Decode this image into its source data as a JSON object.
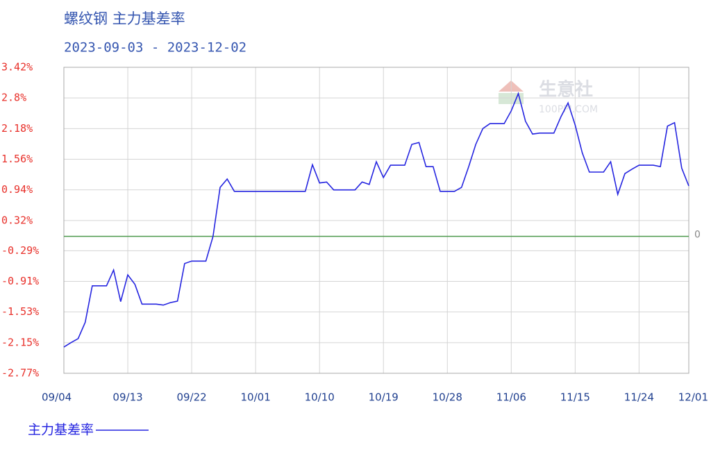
{
  "chart_data": {
    "type": "line",
    "title": "螺纹钢 主力基差率",
    "subtitle": "2023-09-03 - 2023-12-02",
    "watermark": [
      "生意社",
      "100PPI.COM"
    ],
    "x": [
      "09/04",
      "09/05",
      "09/06",
      "09/07",
      "09/08",
      "09/09",
      "09/10",
      "09/11",
      "09/12",
      "09/13",
      "09/14",
      "09/15",
      "09/16",
      "09/17",
      "09/18",
      "09/19",
      "09/20",
      "09/21",
      "09/22",
      "09/23",
      "09/24",
      "09/25",
      "09/26",
      "09/27",
      "09/28",
      "09/29",
      "09/30",
      "10/01",
      "10/02",
      "10/03",
      "10/04",
      "10/05",
      "10/06",
      "10/07",
      "10/08",
      "10/09",
      "10/10",
      "10/11",
      "10/12",
      "10/13",
      "10/14",
      "10/15",
      "10/16",
      "10/17",
      "10/18",
      "10/19",
      "10/20",
      "10/21",
      "10/22",
      "10/23",
      "10/24",
      "10/25",
      "10/26",
      "10/27",
      "10/28",
      "10/29",
      "10/30",
      "10/31",
      "11/01",
      "11/02",
      "11/03",
      "11/04",
      "11/05",
      "11/06",
      "11/07",
      "11/08",
      "11/09",
      "11/10",
      "11/11",
      "11/12",
      "11/13",
      "11/14",
      "11/15",
      "11/16",
      "11/17",
      "11/18",
      "11/19",
      "11/20",
      "11/21",
      "11/22",
      "11/23",
      "11/24",
      "11/25",
      "11/26",
      "11/27",
      "11/28",
      "11/29",
      "11/30",
      "12/01"
    ],
    "series": [
      {
        "name": "主力基差率",
        "color": "#2424e0",
        "values": [
          -2.24,
          -2.15,
          -2.07,
          -1.74,
          -1.0,
          -1.0,
          -1.0,
          -0.68,
          -1.32,
          -0.78,
          -0.97,
          -1.37,
          -1.37,
          -1.37,
          -1.39,
          -1.34,
          -1.31,
          -0.55,
          -0.5,
          -0.5,
          -0.5,
          0.0,
          0.99,
          1.16,
          0.91,
          0.91,
          0.91,
          0.91,
          0.91,
          0.91,
          0.91,
          0.91,
          0.91,
          0.91,
          0.91,
          1.45,
          1.08,
          1.1,
          0.94,
          0.94,
          0.94,
          0.94,
          1.1,
          1.05,
          1.51,
          1.19,
          1.44,
          1.44,
          1.44,
          1.86,
          1.9,
          1.41,
          1.41,
          0.91,
          0.91,
          0.91,
          0.99,
          1.41,
          1.86,
          2.18,
          2.28,
          2.28,
          2.28,
          2.54,
          2.89,
          2.33,
          2.07,
          2.09,
          2.09,
          2.09,
          2.42,
          2.7,
          2.25,
          1.69,
          1.3,
          1.3,
          1.3,
          1.51,
          0.85,
          1.27,
          1.36,
          1.44,
          1.44,
          1.44,
          1.41,
          2.23,
          2.3,
          1.38,
          1.02
        ]
      }
    ],
    "xticks": [
      "09/04",
      "09/13",
      "09/22",
      "10/01",
      "10/10",
      "10/19",
      "10/28",
      "11/06",
      "11/15",
      "11/24",
      "12/01"
    ],
    "ylim": [
      -2.77,
      3.42
    ],
    "yticks": [
      {
        "value": -2.77,
        "label": "-2.77%"
      },
      {
        "value": -2.15,
        "label": "-2.15%"
      },
      {
        "value": -1.53,
        "label": "-1.53%"
      },
      {
        "value": -0.91,
        "label": "-0.91%"
      },
      {
        "value": -0.29,
        "label": "-0.29%"
      },
      {
        "value": 0.32,
        "label": "0.32%"
      },
      {
        "value": 0.94,
        "label": "0.94%"
      },
      {
        "value": 1.56,
        "label": "1.56%"
      },
      {
        "value": 2.18,
        "label": "2.18%"
      },
      {
        "value": 2.8,
        "label": "2.8%"
      },
      {
        "value": 3.42,
        "label": "3.42%"
      }
    ],
    "reference_line": {
      "value": 0,
      "label": "0",
      "color": "#4e9a4e"
    },
    "grid": true
  }
}
